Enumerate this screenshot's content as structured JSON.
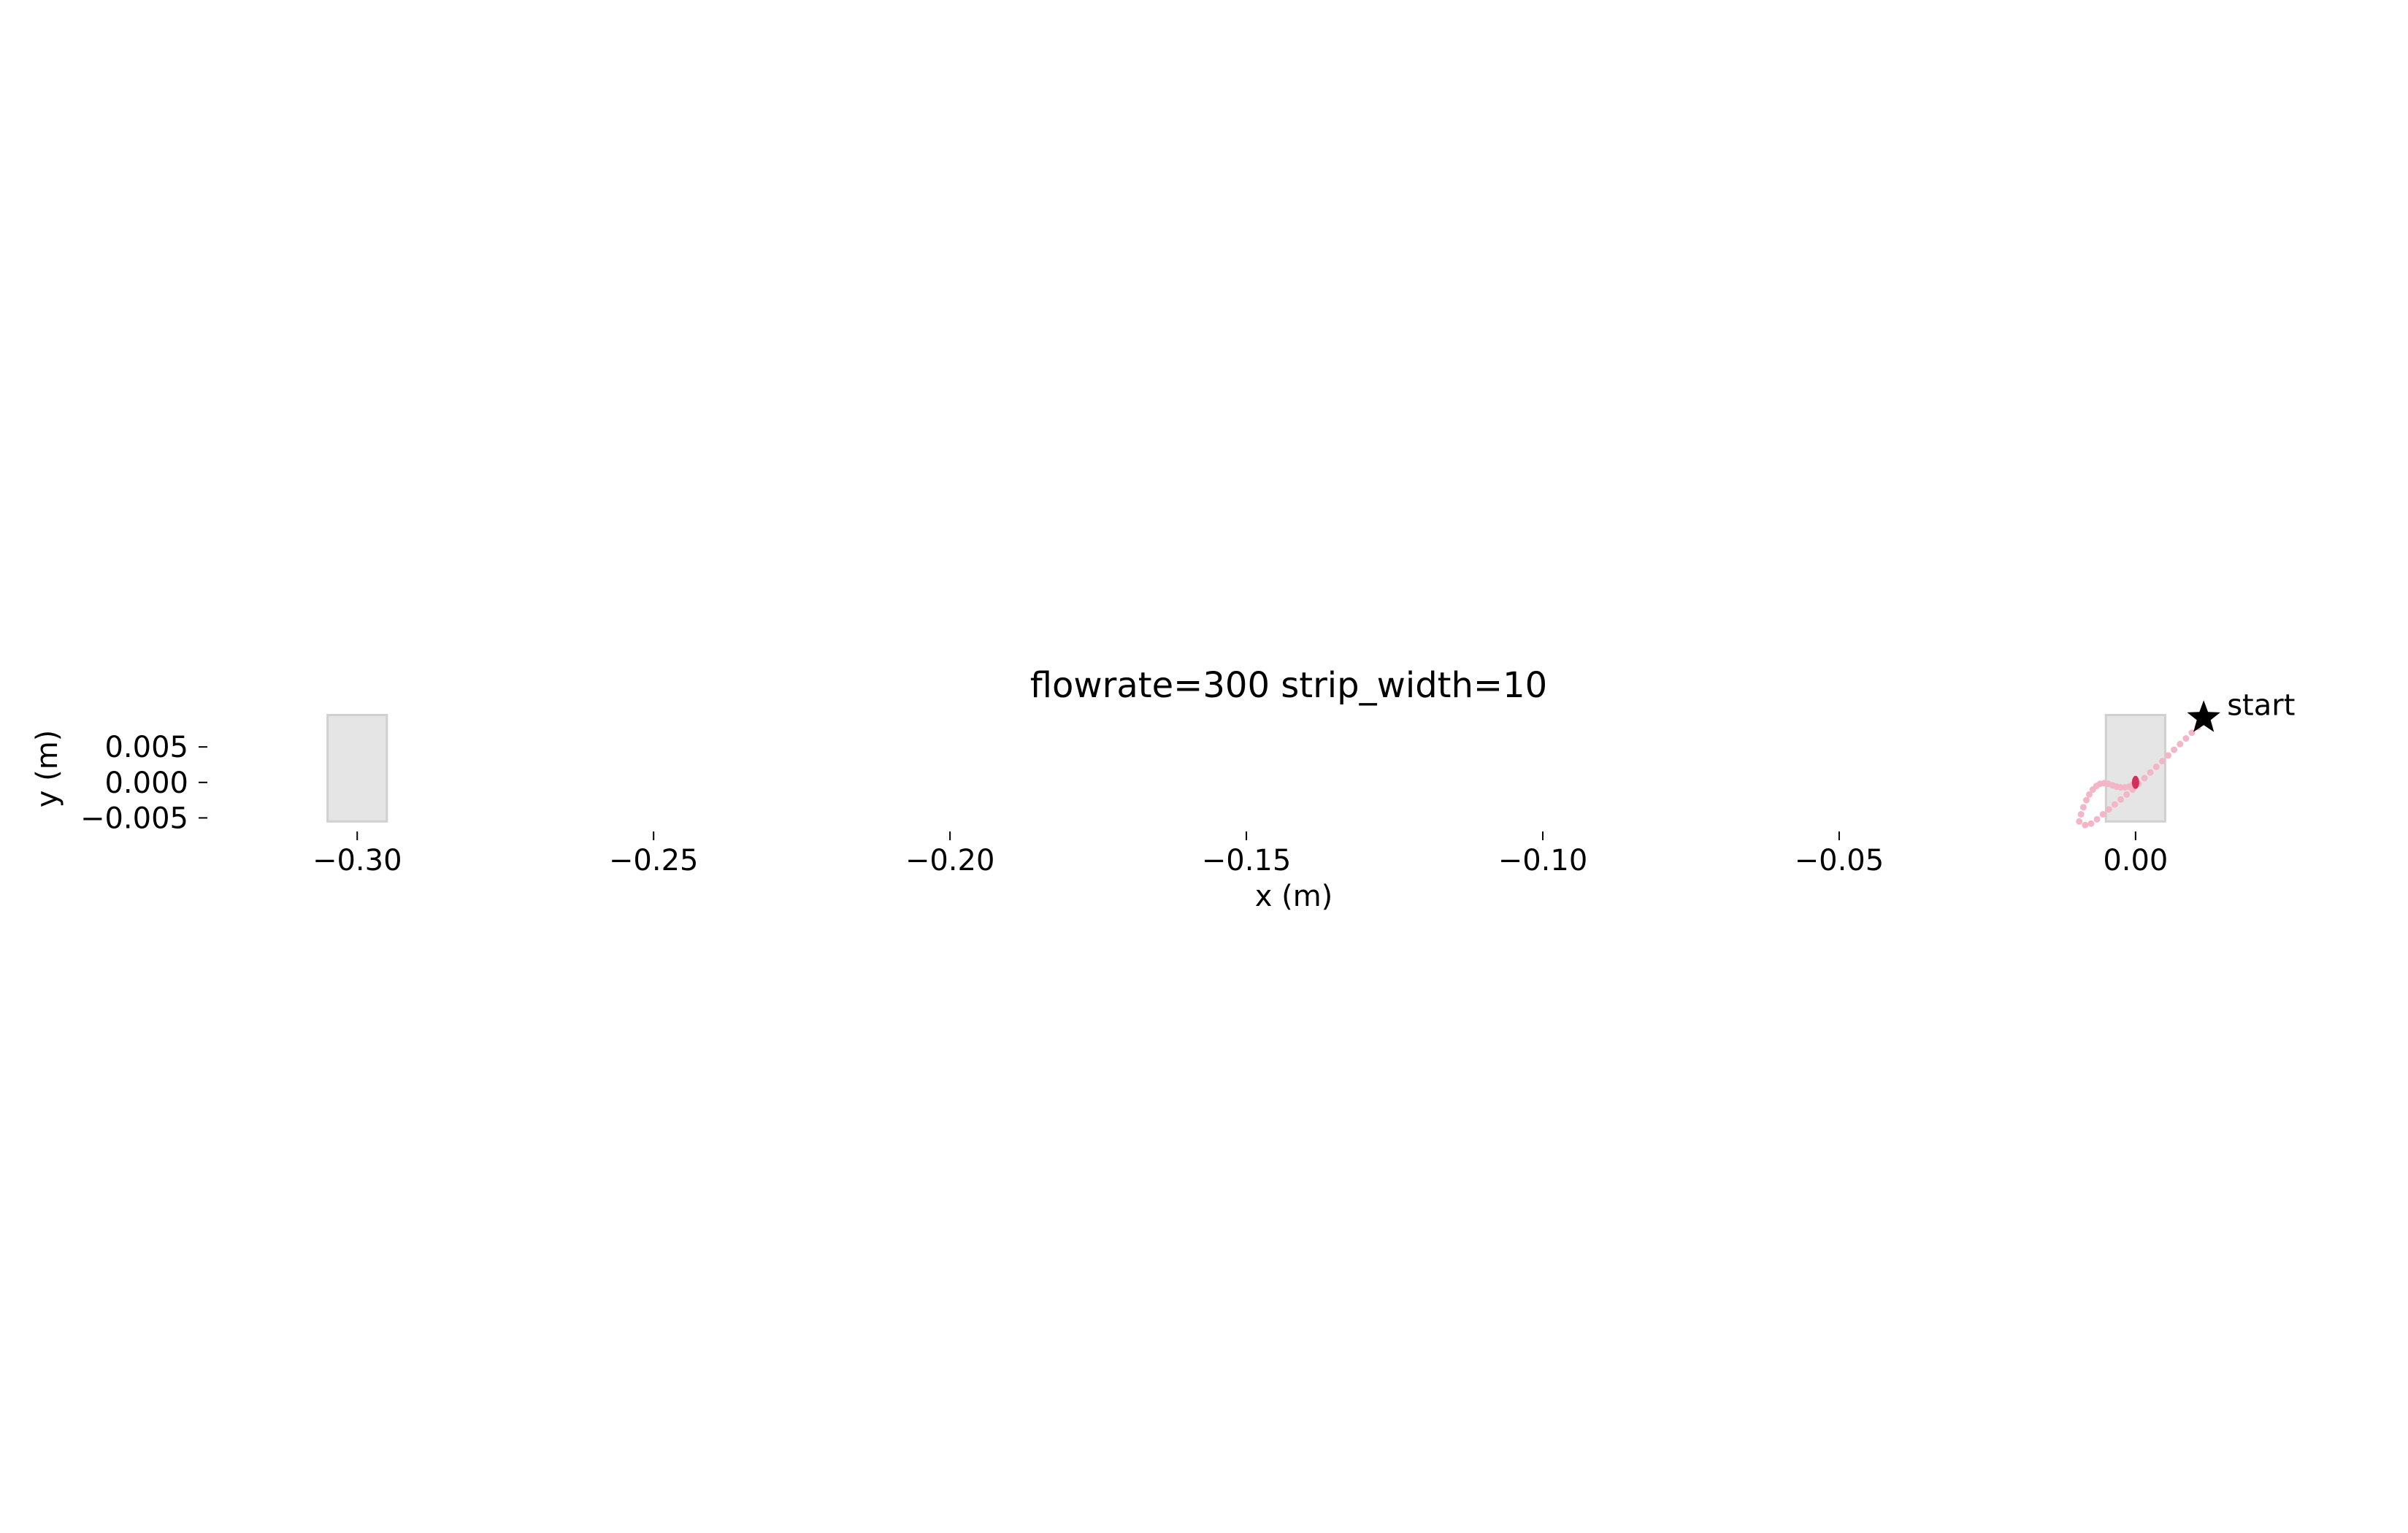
{
  "chart_data": {
    "type": "scatter",
    "title": "flowrate=300 strip_width=10",
    "xlabel": "x (m)",
    "ylabel": "y (m)",
    "xlim": [
      -0.3105,
      0.0265
    ],
    "ylim": [
      -0.0065,
      0.0115
    ],
    "x_ticks": [
      -0.3,
      -0.25,
      -0.2,
      -0.15,
      -0.1,
      -0.05,
      0.0
    ],
    "x_tick_labels": [
      "−0.30",
      "−0.25",
      "−0.20",
      "−0.15",
      "−0.10",
      "−0.05",
      "0.00"
    ],
    "y_ticks": [
      0.005,
      0.0,
      -0.005
    ],
    "y_tick_labels": [
      "0.005",
      "0.000",
      "−0.005"
    ],
    "grid": false,
    "strips": [
      {
        "x_range": [
          -0.305,
          -0.295
        ],
        "y_range": [
          -0.0055,
          0.0095
        ],
        "color": "#e5e5e5"
      },
      {
        "x_range": [
          -0.005,
          0.005
        ],
        "y_range": [
          -0.0055,
          0.0095
        ],
        "color": "#e5e5e5"
      }
    ],
    "trajectory": {
      "color": "#f4b6c6",
      "x": [
        0.0115,
        0.0105,
        0.0095,
        0.0085,
        0.0075,
        0.0065,
        0.0055,
        0.0045,
        0.0035,
        0.0025,
        0.0015,
        0.0005,
        -0.0005,
        -0.0015,
        -0.0025,
        -0.0035,
        -0.0045,
        -0.0055,
        -0.0065,
        -0.0075,
        -0.0085,
        -0.0095,
        -0.0092,
        -0.0088,
        -0.0083,
        -0.0078,
        -0.0072,
        -0.0066,
        -0.006,
        -0.0053,
        -0.0046,
        -0.0039,
        -0.0032,
        -0.0025,
        -0.0018,
        -0.0011,
        -0.0005
      ],
      "y": [
        0.0085,
        0.0078,
        0.007,
        0.0062,
        0.0054,
        0.0046,
        0.0038,
        0.003,
        0.0022,
        0.0014,
        0.0006,
        -0.0002,
        -0.001,
        -0.0017,
        -0.0024,
        -0.0031,
        -0.0038,
        -0.0045,
        -0.0052,
        -0.0058,
        -0.006,
        -0.0055,
        -0.0045,
        -0.0035,
        -0.0025,
        -0.0017,
        -0.001,
        -0.0005,
        -0.0002,
        -0.0001,
        -0.0002,
        -0.0004,
        -0.0006,
        -0.0007,
        -0.0007,
        -0.0006,
        -0.0003
      ]
    },
    "end_point": {
      "x": 0.0,
      "y": 0.0,
      "color": "#d62f5a"
    },
    "start_marker": {
      "x": 0.0115,
      "y": 0.0091,
      "label": "start",
      "color": "#000000",
      "icon": "star-icon"
    }
  }
}
